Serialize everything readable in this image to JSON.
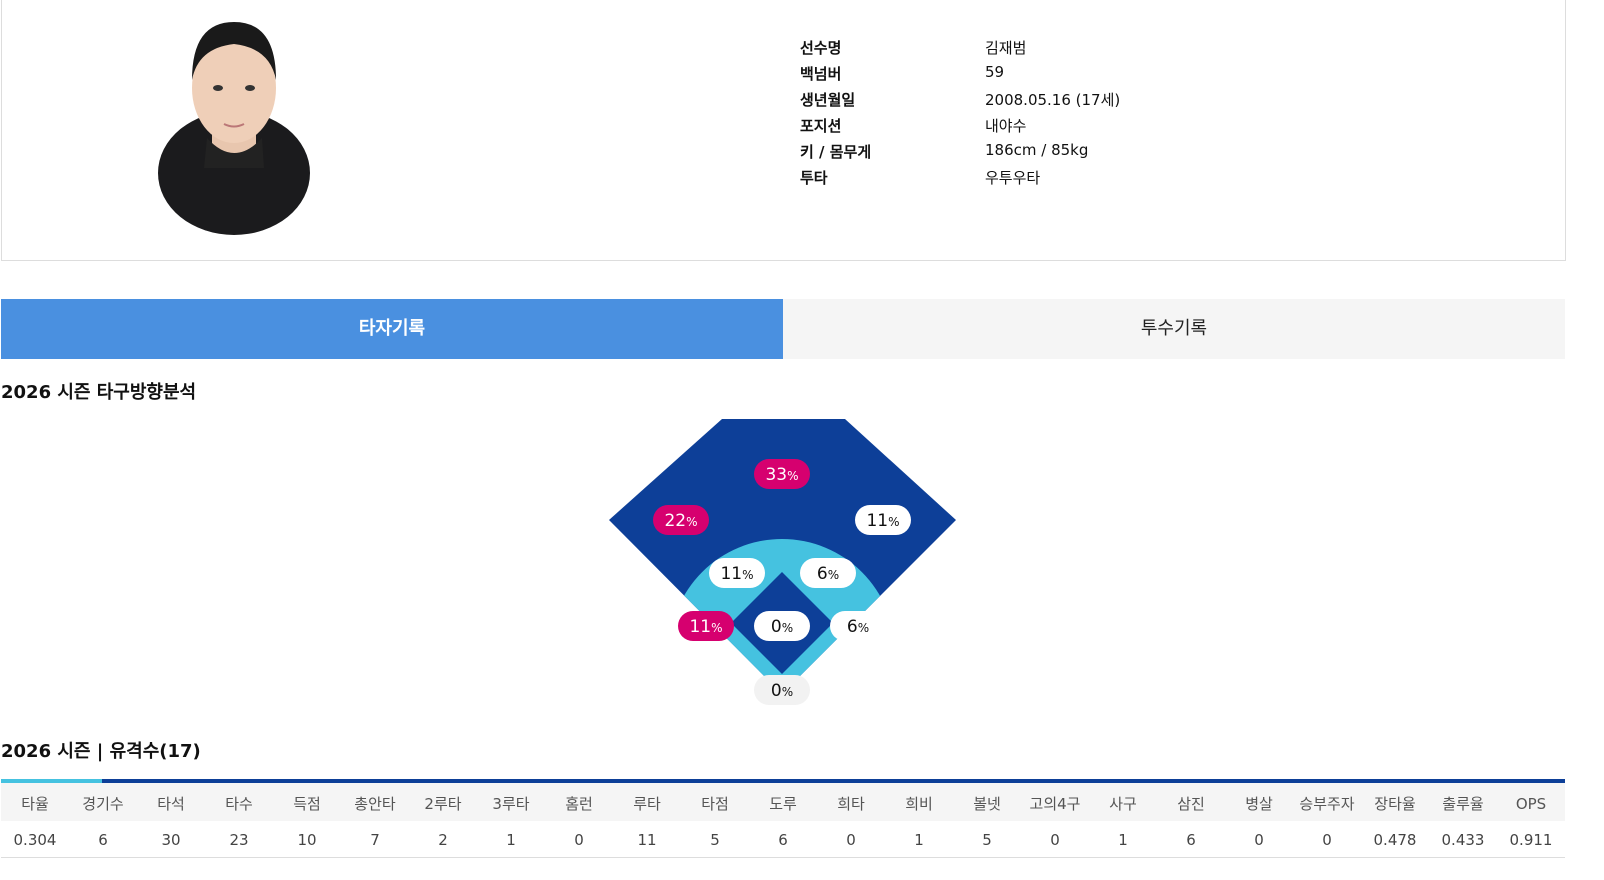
{
  "profile": {
    "fields": [
      {
        "label": "선수명",
        "value": "김재범"
      },
      {
        "label": "백넘버",
        "value": "59"
      },
      {
        "label": "생년월일",
        "value": "2008.05.16 (17세)"
      },
      {
        "label": "포지션",
        "value": "내야수"
      },
      {
        "label": "키 / 몸무게",
        "value": "186cm / 85kg"
      },
      {
        "label": "투타",
        "value": "우투우타"
      }
    ]
  },
  "tabs": [
    {
      "label": "타자기록",
      "active": true
    },
    {
      "label": "투수기록",
      "active": false
    }
  ],
  "spray": {
    "title": "2026 시즌 타구방향분석",
    "unit": "%",
    "zones": [
      {
        "value": 33,
        "color": "#d6006f"
      },
      {
        "value": 22,
        "color": "#d6006f"
      },
      {
        "value": 11,
        "color": "#ffffff"
      },
      {
        "value": 11,
        "color": "#ffffff"
      },
      {
        "value": 6,
        "color": "#ffffff"
      },
      {
        "value": 11,
        "color": "#d6006f"
      },
      {
        "value": 0,
        "color": "#ffffff"
      },
      {
        "value": 6,
        "color": "#ffffff"
      },
      {
        "value": 0,
        "color": "#f2f2f2"
      }
    ]
  },
  "record": {
    "title": "2026 시즌 | 유격수(17)",
    "headers": [
      "타율",
      "경기수",
      "타석",
      "타수",
      "득점",
      "총안타",
      "2루타",
      "3루타",
      "홈런",
      "루타",
      "타점",
      "도루",
      "희타",
      "희비",
      "볼넷",
      "고의4구",
      "사구",
      "삼진",
      "병살",
      "승부주자",
      "장타율",
      "출루율",
      "OPS"
    ],
    "rows": [
      [
        "0.304",
        "6",
        "30",
        "23",
        "10",
        "7",
        "2",
        "1",
        "0",
        "11",
        "5",
        "6",
        "0",
        "1",
        "5",
        "0",
        "1",
        "6",
        "0",
        "0",
        "0.478",
        "0.433",
        "0.911"
      ]
    ]
  }
}
